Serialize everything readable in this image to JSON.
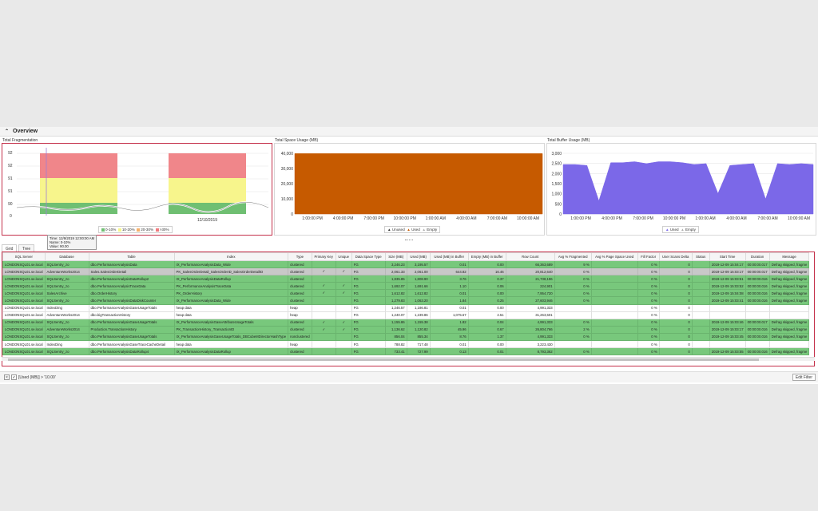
{
  "overview": {
    "title": "Overview"
  },
  "panels": {
    "fragmentation": {
      "title": "Total Fragmentation"
    },
    "space": {
      "title": "Total Space Usage (MB)"
    },
    "buffer": {
      "title": "Total Buffer Usage (MB)"
    }
  },
  "chart_data": [
    {
      "type": "area",
      "title": "Total Fragmentation",
      "y_ticks": [
        "92",
        "92",
        "91",
        "91",
        "90",
        "0"
      ],
      "x_ticks": [
        "12/10/2019"
      ],
      "legend": [
        {
          "label": "0-10%",
          "color": "#6fbf72"
        },
        {
          "label": "10-20%",
          "color": "#f5f58a"
        },
        {
          "label": "20-30%",
          "color": "#f5b06b"
        },
        {
          "label": ">30%",
          "color": "#f07a7e"
        }
      ],
      "tooltip": {
        "time": "Time: 12/9/2019 12:00:00 AM",
        "name": "Name: 0-10%",
        "value": "Value: 90.00"
      }
    },
    {
      "type": "area",
      "title": "Total Space Usage (MB)",
      "y_ticks": [
        "40,000",
        "30,000",
        "20,000",
        "10,000",
        "0"
      ],
      "ylim": [
        0,
        40000
      ],
      "x_ticks": [
        "1:00:00 PM",
        "4:00:00 PM",
        "7:00:00 PM",
        "10:00:00 PM",
        "1:00:00 AM",
        "4:00:00 AM",
        "7:00:00 AM",
        "10:00:00 AM"
      ],
      "series": [
        {
          "name": "Used",
          "color": "#c65a00",
          "values": [
            39800,
            39800,
            39800,
            39800,
            39800,
            39800,
            39800,
            39800
          ]
        }
      ],
      "legend": [
        "Unused",
        "Used",
        "Empty"
      ]
    },
    {
      "type": "area",
      "title": "Total Buffer Usage (MB)",
      "y_ticks": [
        "3,000",
        "2,500",
        "2,000",
        "1,500",
        "1,000",
        "500",
        "0"
      ],
      "ylim": [
        0,
        3250
      ],
      "x_ticks": [
        "1:00:00 PM",
        "4:00:00 PM",
        "7:00:00 PM",
        "10:00:00 PM",
        "1:00:00 AM",
        "4:00:00 AM",
        "7:00:00 AM",
        "10:00:00 AM"
      ],
      "series": [
        {
          "name": "Used",
          "color": "#7b68e8",
          "values": [
            2650,
            2650,
            2600,
            700,
            2750,
            2750,
            2800,
            2700,
            2800,
            2800,
            2750,
            2650,
            2700,
            1100,
            2600,
            2650,
            2700,
            800,
            2700,
            2650,
            2700,
            2650
          ]
        }
      ],
      "legend": [
        "Used",
        "Empty"
      ]
    }
  ],
  "tabs": [
    "Grid",
    "Tree"
  ],
  "grid": {
    "columns": [
      "SQL Server",
      "Database",
      "Table",
      "Index",
      "Type",
      "Primary Key",
      "Unique",
      "Data Space Type",
      "Size (MB)",
      "Used (MB)",
      "Used (MB) in Buffer",
      "Empty (MB) in Buffer",
      "Row Count",
      "Avg % Fragmented",
      "Avg % Page Space Used",
      "Fill Factor",
      "User Scans Delta",
      "Status",
      "Start Time",
      "Duration",
      "Message"
    ],
    "rows": [
      {
        "style": "g",
        "cells": [
          "LONDONSQL01.se.local",
          "SQLSentry_zo",
          "dbo.PerformanceAnalysisData",
          "IX_PerformanceAnalysisData_Wide",
          "clustered",
          "",
          "",
          "FG",
          "3,246.23",
          "3,195.57",
          "0.01",
          "0.00",
          "66,363,689",
          "9 %",
          "",
          "0 %",
          "0",
          "",
          "2019-12-09 15:04:17",
          "00:00:00.017",
          "Defrag skipped, fragme"
        ]
      },
      {
        "style": "s",
        "cells": [
          "LONDONSQL01.se.local",
          "AdventureWorks2014",
          "Sales.SalesOrderDetail",
          "PK_SalesOrderDetail_SalesOrderID_SalesOrderDetailID",
          "clustered",
          "✓",
          "✓",
          "FG",
          "2,061.33",
          "2,061.00",
          "644.82",
          "16.46",
          "20,812,640",
          "0 %",
          "",
          "0 %",
          "0",
          "",
          "2019-12-09 15:03:17",
          "00:00:00.017",
          "Defrag skipped, fragme"
        ]
      },
      {
        "style": "g",
        "cells": [
          "LONDONSQL01.se.local",
          "SQLSentry_zo",
          "dbo.PerformanceAnalysisDataRollup2",
          "IX_PerformanceAnalysisDataRollup",
          "clustered",
          "",
          "",
          "FG",
          "1,835.85",
          "1,808.90",
          "3.76",
          "0.37",
          "21,738,196",
          "0 %",
          "",
          "0 %",
          "0",
          "",
          "2019-12-09 15:03:51",
          "00:00:00.016",
          "Defrag skipped, fragme"
        ]
      },
      {
        "style": "g",
        "cells": [
          "LONDONSQL01.se.local",
          "SQLSentry_zo",
          "dbo.PerformanceAnalysisTraceData",
          "PK_PerformanceAnalysisTraceData",
          "clustered",
          "✓",
          "✓",
          "FG",
          "1,692.07",
          "1,691.66",
          "1.10",
          "0.06",
          "224,901",
          "0 %",
          "",
          "0 %",
          "0",
          "",
          "2019-12-09 15:03:52",
          "00:00:00.016",
          "Defrag skipped, fragme"
        ]
      },
      {
        "style": "g",
        "cells": [
          "LONDONSQL01.se.local",
          "SalesArchive",
          "dbo.OrderHistory",
          "PK_OrderHistory",
          "clustered",
          "✓",
          "✓",
          "FG",
          "1,612.82",
          "1,612.82",
          "0.01",
          "0.00",
          "7,954,720",
          "0 %",
          "",
          "0 %",
          "0",
          "",
          "2019-12-09 15:04:08",
          "00:00:00.016",
          "Defrag skipped, fragme"
        ]
      },
      {
        "style": "g",
        "cells": [
          "LONDONSQL01.se.local",
          "SQLSentry_zo",
          "dbo.PerformanceAnalysisDataDiskCounter",
          "IX_PerformanceAnalysisData_Wide",
          "clustered",
          "",
          "",
          "FG",
          "1,279.83",
          "1,063.20",
          "1.84",
          "0.25",
          "27,603,946",
          "0 %",
          "",
          "0 %",
          "0",
          "",
          "2019-12-09 15:03:41",
          "00:00:00.016",
          "Defrag skipped, fragme"
        ]
      },
      {
        "style": "w",
        "cells": [
          "LONDONSQL01.se.local",
          "IndexDing",
          "dbo.PerformanceAnalysisGaseUsageTotals",
          "heap data",
          "heap",
          "",
          "",
          "FG",
          "1,246.57",
          "1,186.81",
          "0.01",
          "0.00",
          "4,991,333",
          "",
          "",
          "0 %",
          "0",
          "",
          "",
          "",
          ""
        ]
      },
      {
        "style": "w",
        "cells": [
          "LONDONSQL01.se.local",
          "AdventureWorks2014",
          "dbo.bigTransactionHistory",
          "heap data",
          "heap",
          "",
          "",
          "FG",
          "1,240.07",
          "1,239.86",
          "1,075.67",
          "2.51",
          "31,263,601",
          "",
          "",
          "0 %",
          "0",
          "",
          "",
          "",
          ""
        ]
      },
      {
        "style": "g",
        "cells": [
          "LONDONSQL01.se.local",
          "SQLSentry_zo",
          "dbo.PerformanceAnalysisGaseUsageTotals",
          "IX_PerformanceAnalysisGaseAttributeUsageTotals",
          "clustered",
          "✓",
          "✓",
          "FG",
          "1,155.86",
          "1,155.38",
          "1.82",
          "0.04",
          "4,991,333",
          "0 %",
          "",
          "0 %",
          "0",
          "",
          "2019-12-09 15:03:46",
          "00:00:00.017",
          "Defrag skipped, fragme"
        ]
      },
      {
        "style": "g",
        "cells": [
          "LONDONSQL01.se.local",
          "AdventureWorks2014",
          "Production.TransactionHistory",
          "PK_TransactionHistory_TransactionID",
          "clustered",
          "✓",
          "✓",
          "FG",
          "1,136.62",
          "1,120.82",
          "45.96",
          "0.67",
          "26,804,766",
          "2 %",
          "",
          "0 %",
          "0",
          "",
          "2019-12-09 15:03:17",
          "00:00:00.016",
          "Defrag skipped, fragme"
        ]
      },
      {
        "style": "g",
        "cells": [
          "LONDONSQL01.se.local",
          "SQLSentry_zo",
          "dbo.PerformanceAnalysisGaseUsageTotals",
          "IX_PerformanceAnalysisGaseUsageTotals_DBCubeMDirectorHashType",
          "nonclustered",
          "",
          "",
          "FG",
          "856.04",
          "855.34",
          "8.76",
          "1.37",
          "4,991,333",
          "0 %",
          "",
          "0 %",
          "0",
          "",
          "2019-12-09 15:03:45",
          "00:00:00.016",
          "Defrag skipped, fragme"
        ]
      },
      {
        "style": "w",
        "cells": [
          "LONDONSQL01.se.local",
          "IndexDing",
          "dbo.PerformanceAnalysisGaseTraceCacheDetail",
          "heap data",
          "heap",
          "",
          "",
          "FG",
          "788.82",
          "717.48",
          "0.01",
          "0.00",
          "3,223,430",
          "",
          "",
          "0 %",
          "0",
          "",
          "",
          "",
          ""
        ]
      },
      {
        "style": "g",
        "cells": [
          "LONDONSQL01.se.local",
          "SQLSentry_zo",
          "dbo.PerformanceAnalysisDataRollup4",
          "IX_PerformanceAnalysisDataRollup",
          "clustered",
          "",
          "",
          "FG",
          "733.41",
          "727.99",
          "0.13",
          "0.01",
          "8,793,362",
          "0 %",
          "",
          "0 %",
          "0",
          "",
          "2019-12-09 15:03:55",
          "00:00:00.016",
          "Defrag skipped, fragme"
        ]
      }
    ]
  },
  "filter": {
    "text": "[Used (MB)] > '10.00'",
    "edit_label": "Edit Filter",
    "close_glyph": "×",
    "check_glyph": "✓"
  },
  "icons": {
    "overview_chevron": "chevron-up-icon"
  }
}
